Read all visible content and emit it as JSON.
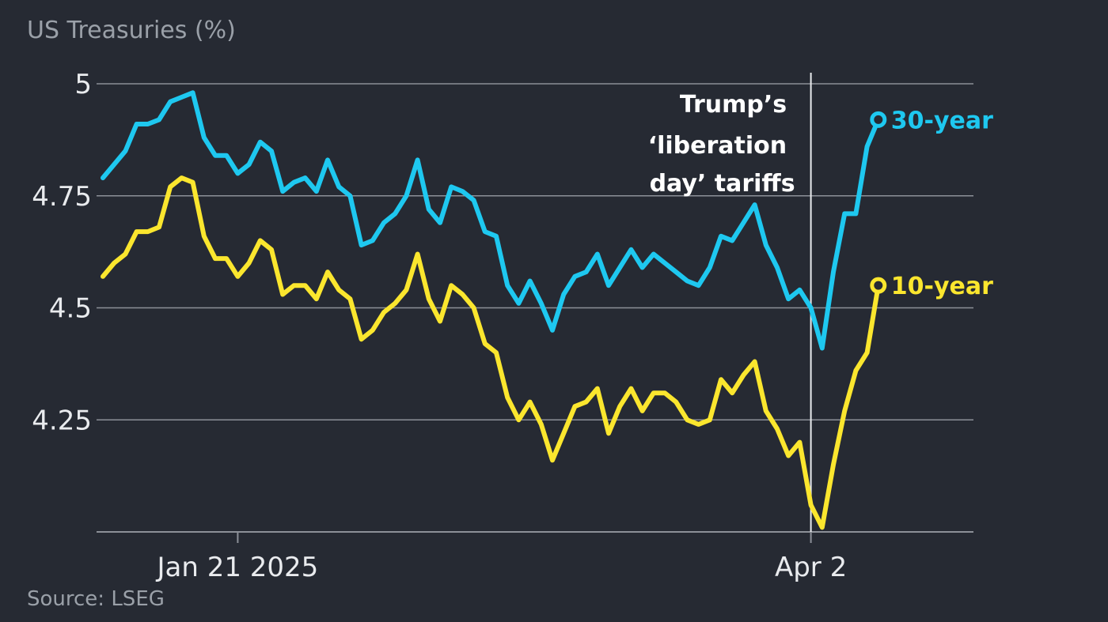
{
  "chart_data": {
    "type": "line",
    "title": "US Treasuries (%)",
    "source": "Source: LSEG",
    "ylim": [
      4.0,
      5.0
    ],
    "yticks": [
      {
        "value": 5,
        "label": "5"
      },
      {
        "value": 4.75,
        "label": "4.75"
      },
      {
        "value": 4.5,
        "label": "4.5"
      },
      {
        "value": 4.25,
        "label": "4.25"
      }
    ],
    "xticks": [
      {
        "index": 12,
        "label": "Jan 21 2025"
      },
      {
        "index": 63,
        "label": "Apr 2"
      }
    ],
    "event_index": 63,
    "annotation": [
      "Trump’s",
      "‘liberation",
      "day’ tariffs"
    ],
    "grid": true,
    "series": [
      {
        "name": "30-year",
        "color": "#1ec8f0",
        "values": [
          4.79,
          4.82,
          4.85,
          4.91,
          4.91,
          4.92,
          4.96,
          4.97,
          4.98,
          4.88,
          4.84,
          4.84,
          4.8,
          4.82,
          4.87,
          4.85,
          4.76,
          4.78,
          4.79,
          4.76,
          4.83,
          4.77,
          4.75,
          4.64,
          4.65,
          4.69,
          4.71,
          4.75,
          4.83,
          4.72,
          4.69,
          4.77,
          4.76,
          4.74,
          4.67,
          4.66,
          4.55,
          4.51,
          4.56,
          4.51,
          4.45,
          4.53,
          4.57,
          4.58,
          4.62,
          4.55,
          4.59,
          4.63,
          4.59,
          4.62,
          4.6,
          4.58,
          4.56,
          4.55,
          4.59,
          4.66,
          4.65,
          4.69,
          4.73,
          4.64,
          4.59,
          4.52,
          4.54,
          4.5,
          4.41,
          4.58,
          4.71,
          4.71,
          4.86,
          4.92
        ]
      },
      {
        "name": "10-year",
        "color": "#fbe62e",
        "values": [
          4.57,
          4.6,
          4.62,
          4.67,
          4.67,
          4.68,
          4.77,
          4.79,
          4.78,
          4.66,
          4.61,
          4.61,
          4.57,
          4.6,
          4.65,
          4.63,
          4.53,
          4.55,
          4.55,
          4.52,
          4.58,
          4.54,
          4.52,
          4.43,
          4.45,
          4.49,
          4.51,
          4.54,
          4.62,
          4.52,
          4.47,
          4.55,
          4.53,
          4.5,
          4.42,
          4.4,
          4.3,
          4.25,
          4.29,
          4.24,
          4.16,
          4.22,
          4.28,
          4.29,
          4.32,
          4.22,
          4.28,
          4.32,
          4.27,
          4.31,
          4.31,
          4.29,
          4.25,
          4.24,
          4.25,
          4.34,
          4.31,
          4.35,
          4.38,
          4.27,
          4.23,
          4.17,
          4.2,
          4.06,
          4.01,
          4.15,
          4.27,
          4.36,
          4.4,
          4.55
        ]
      }
    ]
  }
}
